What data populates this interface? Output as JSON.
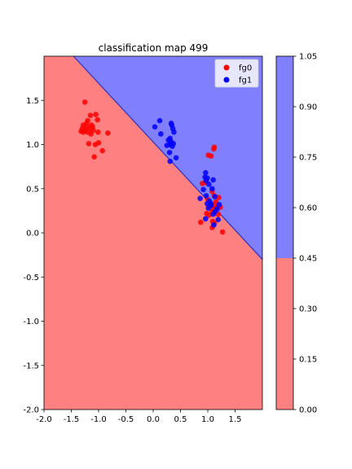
{
  "chart_data": [
    {
      "type": "scatter",
      "title": "classification map 499",
      "xlabel": "",
      "ylabel": "",
      "xlim": [
        -2.0,
        2.0
      ],
      "ylim": [
        -2.0,
        2.0
      ],
      "xticks": [
        "-2.0",
        "-1.5",
        "-1.0",
        "-0.5",
        "0.0",
        "0.5",
        "1.0",
        "1.5"
      ],
      "yticks": [
        "-2.0",
        "-1.5",
        "-1.0",
        "-0.5",
        "0.0",
        "0.5",
        "1.0",
        "1.5"
      ],
      "xtick_values": [
        -2.0,
        -1.5,
        -1.0,
        -0.5,
        0.0,
        0.5,
        1.0,
        1.5
      ],
      "ytick_values": [
        -2.0,
        -1.5,
        -1.0,
        -0.5,
        0.0,
        0.5,
        1.0,
        1.5
      ],
      "grid": false,
      "legend_position": "top-right",
      "background_regions": {
        "boundary_points": [
          [
            -1.46,
            2.0
          ],
          [
            2.0,
            -0.3
          ]
        ],
        "region_above_value": 1.0,
        "region_below_value": 0.0,
        "colors": {
          "above": "#8080ff",
          "below": "#ff8080"
        }
      },
      "series": [
        {
          "name": "fg0",
          "color": "#ff0000",
          "points": [
            [
              -1.25,
              1.48
            ],
            [
              -1.15,
              1.33
            ],
            [
              -1.05,
              1.34
            ],
            [
              -1.2,
              1.27
            ],
            [
              -1.02,
              1.28
            ],
            [
              -1.28,
              1.22
            ],
            [
              -1.22,
              1.24
            ],
            [
              -1.13,
              1.22
            ],
            [
              -1.3,
              1.18
            ],
            [
              -1.24,
              1.16
            ],
            [
              -1.16,
              1.18
            ],
            [
              -1.11,
              1.2
            ],
            [
              -1.2,
              1.14
            ],
            [
              -1.28,
              1.14
            ],
            [
              -1.14,
              1.12
            ],
            [
              -1.01,
              1.14
            ],
            [
              -0.83,
              1.13
            ],
            [
              -1.18,
              1.01
            ],
            [
              -1.06,
              1.0
            ],
            [
              -1.0,
              1.02
            ],
            [
              -0.93,
              0.93
            ],
            [
              -1.08,
              0.86
            ],
            [
              -1.22,
              1.2
            ],
            [
              -1.32,
              1.15
            ],
            [
              -1.1,
              1.16
            ],
            [
              1.01,
              0.88
            ],
            [
              1.06,
              0.87
            ],
            [
              1.11,
              0.95
            ],
            [
              1.12,
              0.97
            ],
            [
              0.9,
              0.56
            ],
            [
              0.95,
              0.57
            ],
            [
              1.08,
              0.47
            ],
            [
              1.2,
              0.4
            ],
            [
              1.12,
              0.42
            ],
            [
              1.0,
              0.38
            ],
            [
              1.15,
              0.35
            ],
            [
              1.17,
              0.3
            ],
            [
              1.23,
              0.29
            ],
            [
              1.05,
              0.29
            ],
            [
              1.13,
              0.26
            ],
            [
              1.08,
              0.24
            ],
            [
              1.19,
              0.21
            ],
            [
              1.02,
              0.2
            ],
            [
              0.98,
              0.22
            ],
            [
              1.09,
              0.13
            ],
            [
              1.12,
              0.11
            ],
            [
              1.08,
              0.06
            ],
            [
              1.27,
              0.01
            ],
            [
              0.87,
              0.12
            ],
            [
              1.1,
              0.31
            ]
          ]
        },
        {
          "name": "fg1",
          "color": "#0000ff",
          "points": [
            [
              0.12,
              1.27
            ],
            [
              0.03,
              1.2
            ],
            [
              0.33,
              1.24
            ],
            [
              0.34,
              1.22
            ],
            [
              0.36,
              1.18
            ],
            [
              0.14,
              1.12
            ],
            [
              0.38,
              1.14
            ],
            [
              0.28,
              1.05
            ],
            [
              0.31,
              1.07
            ],
            [
              0.33,
              1.03
            ],
            [
              0.3,
              1.0
            ],
            [
              0.37,
              1.01
            ],
            [
              0.25,
              0.99
            ],
            [
              0.35,
              0.98
            ],
            [
              0.3,
              0.91
            ],
            [
              0.42,
              0.85
            ],
            [
              0.31,
              0.81
            ],
            [
              0.96,
              0.68
            ],
            [
              0.95,
              0.63
            ],
            [
              0.99,
              0.62
            ],
            [
              0.97,
              0.59
            ],
            [
              1.1,
              0.6
            ],
            [
              1.02,
              0.55
            ],
            [
              0.92,
              0.49
            ],
            [
              1.08,
              0.5
            ],
            [
              0.86,
              0.39
            ],
            [
              0.97,
              0.42
            ],
            [
              1.13,
              0.41
            ],
            [
              1.03,
              0.36
            ],
            [
              0.99,
              0.33
            ],
            [
              1.06,
              0.31
            ],
            [
              1.17,
              0.27
            ],
            [
              1.13,
              0.24
            ],
            [
              1.1,
              0.21
            ],
            [
              0.96,
              0.16
            ],
            [
              1.19,
              0.15
            ],
            [
              1.11,
              0.09
            ],
            [
              1.06,
              0.33
            ],
            [
              1.21,
              0.32
            ],
            [
              1.01,
              0.28
            ]
          ]
        }
      ]
    },
    {
      "type": "colorbar",
      "ylim": [
        0.0,
        1.05
      ],
      "ticks": [
        "0.00",
        "0.15",
        "0.30",
        "0.45",
        "0.60",
        "0.75",
        "0.90",
        "1.05"
      ],
      "tick_values": [
        0.0,
        0.15,
        0.3,
        0.45,
        0.6,
        0.75,
        0.9,
        1.05
      ],
      "bands": [
        {
          "from": 0.0,
          "to": 0.45,
          "color": "#ff8080"
        },
        {
          "from": 0.45,
          "to": 1.05,
          "color": "#8080ff"
        }
      ]
    }
  ]
}
